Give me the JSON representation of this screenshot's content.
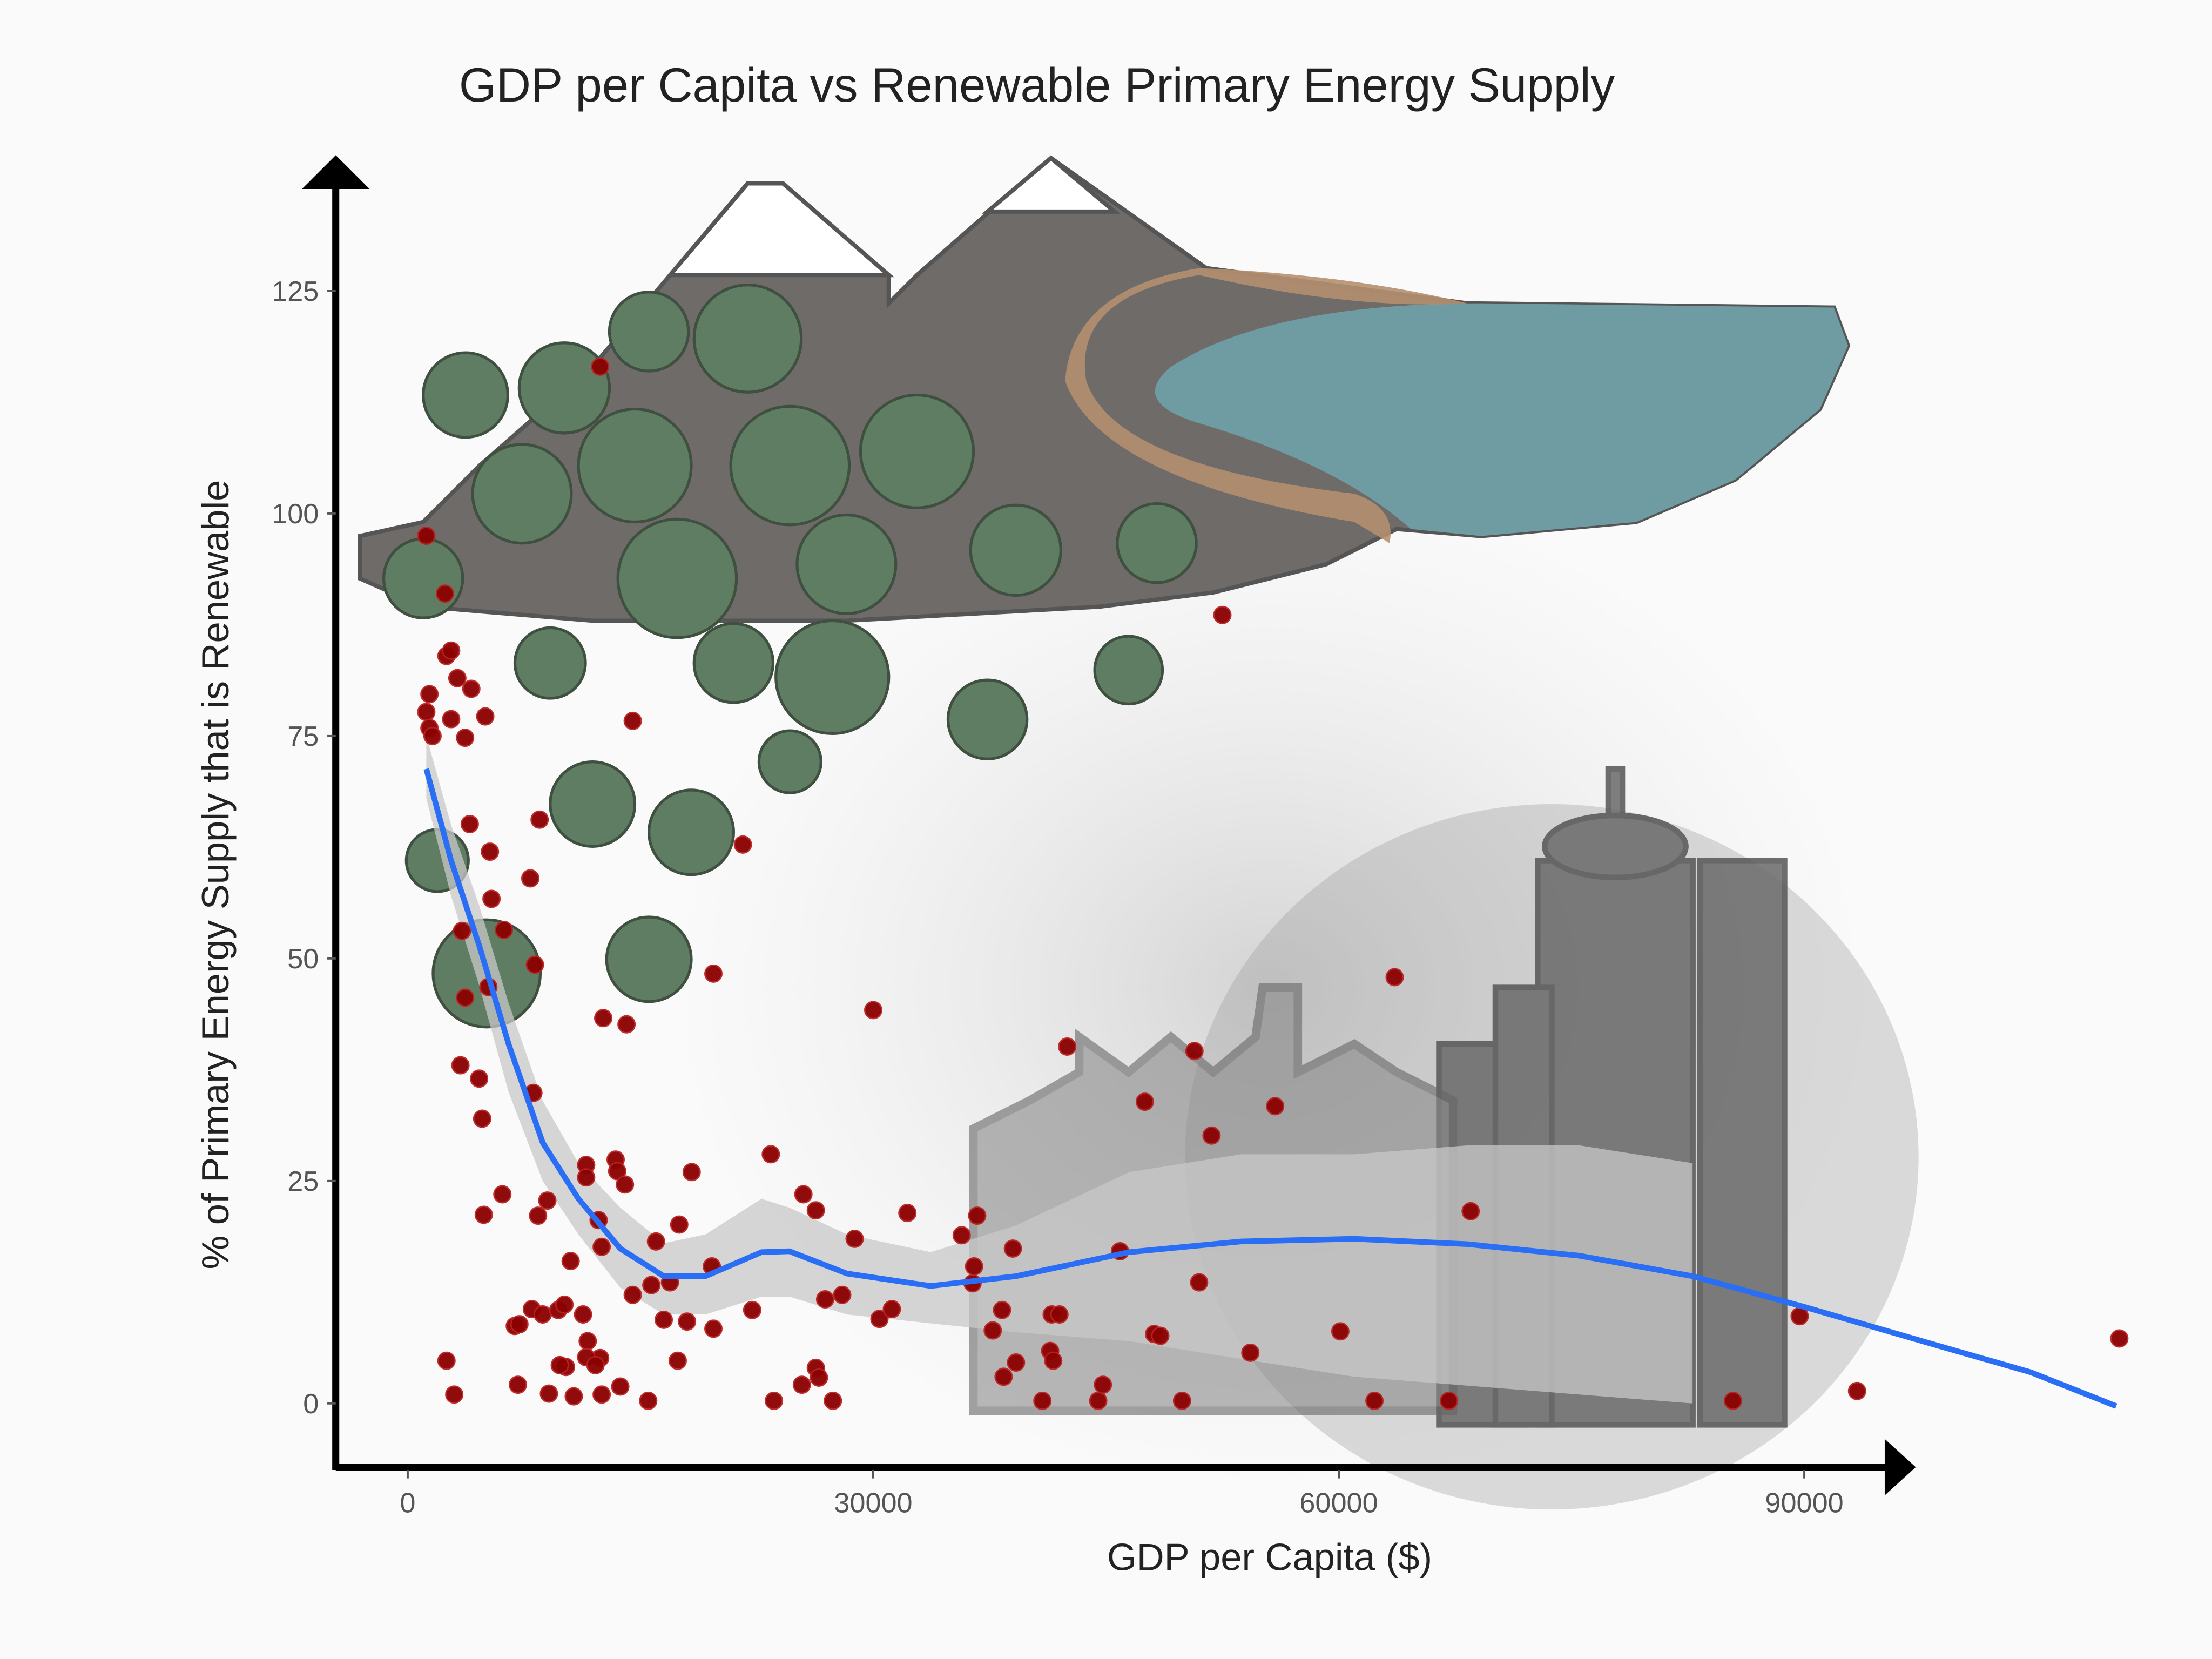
{
  "chart_data": {
    "type": "scatter",
    "title": "GDP per Capita vs Renewable Primary Energy Supply",
    "x_label": "GDP per Capita ($)",
    "y_label": "% of Primary Energy Supply that is Renewable",
    "xlim": [
      -4500,
      112000
    ],
    "ylim": [
      -7,
      139
    ],
    "xticks": [
      0,
      30000,
      60000,
      90000
    ],
    "yticks": [
      0,
      25,
      50,
      75,
      100,
      125
    ],
    "grid": false,
    "points": {
      "color": "#8b0000",
      "x": [
        1200,
        2400,
        12400,
        52500,
        2500,
        2800,
        1400,
        1200,
        1400,
        1600,
        3200,
        4100,
        2800,
        3700,
        5000,
        14500,
        21600,
        4000,
        5300,
        8500,
        7900,
        5400,
        6200,
        3500,
        8200,
        5200,
        3700,
        19700,
        12600,
        14100,
        30000,
        3400,
        4600,
        4800,
        8100,
        42500,
        50700,
        63600,
        47500,
        55900,
        51800,
        11500,
        11500,
        13400,
        13500,
        14000,
        18300,
        23400,
        25500,
        26300,
        4900,
        6100,
        8400,
        9000,
        12300,
        17500,
        36700,
        32200,
        28800,
        35700,
        39000,
        45900,
        68500,
        16000,
        10500,
        12500,
        19600,
        36500,
        36400,
        51000,
        15700,
        16900,
        14500,
        11300,
        6900,
        8000,
        8700,
        9700,
        7200,
        10100,
        16500,
        18000,
        19700,
        22200,
        28000,
        26900,
        30400,
        31200,
        38300,
        37700,
        41500,
        42000,
        48100,
        48500,
        60100,
        89700,
        110300,
        11600,
        12400,
        11500,
        12100,
        10200,
        9800,
        2500,
        7100,
        9100,
        10700,
        12500,
        13700,
        15500,
        3000,
        26300,
        26500,
        25400,
        23600,
        27400,
        17400,
        38400,
        39200,
        41400,
        41600,
        40900,
        44500,
        49900,
        54300,
        62300,
        67100,
        85400,
        93400,
        44800
      ],
      "y": [
        97.5,
        91,
        116.5,
        88.6,
        84,
        84.6,
        79.7,
        77.7,
        75.9,
        75,
        81.5,
        80.3,
        76.9,
        74.8,
        77.2,
        76.7,
        62.8,
        65.1,
        62,
        65.6,
        59,
        56.7,
        53.2,
        53.1,
        49.3,
        46.8,
        45.6,
        48.3,
        43.3,
        42.6,
        44.2,
        38,
        36.5,
        32,
        34.9,
        40.1,
        39.6,
        47.9,
        33.9,
        33.4,
        30.1,
        26.8,
        25.4,
        27.4,
        26.1,
        24.6,
        26,
        28,
        23.5,
        21.7,
        21.2,
        23.5,
        21.1,
        22.8,
        20.6,
        20.1,
        21.1,
        21.4,
        18.5,
        18.9,
        17.4,
        17.1,
        21.6,
        18.2,
        16,
        17.6,
        15.4,
        15.4,
        13.5,
        13.6,
        13.3,
        13.6,
        12.2,
        10,
        8.7,
        10.6,
        10,
        10.5,
        8.9,
        11.1,
        9.4,
        9.2,
        8.4,
        10.5,
        12.2,
        11.7,
        9.5,
        10.6,
        10.5,
        8.2,
        10,
        10,
        7.8,
        7.6,
        8.1,
        9.8,
        7.3,
        7,
        5.1,
        5.2,
        4.3,
        4.1,
        4.3,
        4.8,
        2.1,
        1.1,
        0.8,
        1,
        1.9,
        0.3,
        1,
        4,
        2.9,
        2.1,
        0.3,
        0.3,
        4.8,
        3,
        4.6,
        5.9,
        4.8,
        0.3,
        0.3,
        0.3,
        5.7,
        0.3,
        0.3,
        0.3,
        1.4,
        2.1
      ]
    },
    "smooth": {
      "color": "#2a6ef5",
      "x": [
        1200,
        2800,
        4600,
        6500,
        8700,
        11000,
        13700,
        16500,
        19200,
        22800,
        24600,
        28300,
        33700,
        39200,
        46500,
        53700,
        61000,
        68300,
        75500,
        82800,
        90100,
        97400,
        104600,
        110100
      ],
      "y": [
        71.3,
        61,
        51.5,
        40.4,
        29.3,
        23,
        17.4,
        14.3,
        14.3,
        17,
        17.1,
        14.6,
        13.2,
        14.3,
        17,
        18.2,
        18.5,
        17.9,
        16.6,
        14.3,
        10.8,
        7.1,
        3.5,
        -0.3
      ]
    },
    "band": {
      "color": "#c8c8c8",
      "x": [
        1200,
        2800,
        4600,
        6500,
        8700,
        11000,
        13700,
        16500,
        19200,
        22800,
        24600,
        28300,
        33700,
        39200,
        46500,
        53700,
        61000,
        68300,
        75500,
        82800
      ],
      "lower": [
        68,
        57,
        47,
        35,
        25,
        19,
        13,
        10,
        10,
        12,
        12,
        10,
        9,
        8,
        7,
        5,
        3,
        2,
        1,
        0
      ],
      "upper": [
        75,
        65,
        56,
        45,
        34,
        27,
        22,
        18,
        19,
        23,
        22,
        19,
        17,
        20,
        26,
        28,
        28,
        29,
        29,
        27
      ]
    }
  }
}
